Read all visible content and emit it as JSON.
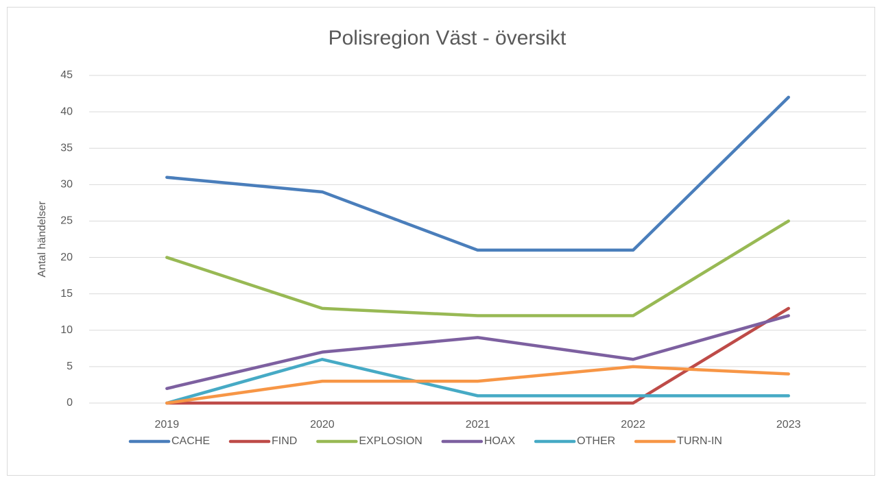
{
  "chart_data": {
    "type": "line",
    "title": "Polisregion Väst - översikt",
    "y_label": "Antal händelser",
    "categories": [
      "2019",
      "2020",
      "2021",
      "2022",
      "2023"
    ],
    "series": [
      {
        "name": "CACHE",
        "color": "#4a7ebb",
        "values": [
          31,
          29,
          21,
          21,
          42
        ]
      },
      {
        "name": "FIND",
        "color": "#be4b48",
        "values": [
          0,
          0,
          0,
          0,
          13
        ]
      },
      {
        "name": "EXPLOSION",
        "color": "#98b954",
        "values": [
          20,
          13,
          12,
          12,
          25
        ]
      },
      {
        "name": "HOAX",
        "color": "#7d60a0",
        "values": [
          2,
          7,
          9,
          6,
          12
        ]
      },
      {
        "name": "OTHER",
        "color": "#46aac5",
        "values": [
          0,
          6,
          1,
          1,
          1
        ]
      },
      {
        "name": "TURN-IN",
        "color": "#f79646",
        "values": [
          0,
          3,
          3,
          5,
          4
        ]
      }
    ],
    "ylim": [
      0,
      45
    ],
    "yticks": [
      0,
      5,
      10,
      15,
      20,
      25,
      30,
      35,
      40,
      45
    ],
    "grid": true,
    "legend": "bottom"
  }
}
